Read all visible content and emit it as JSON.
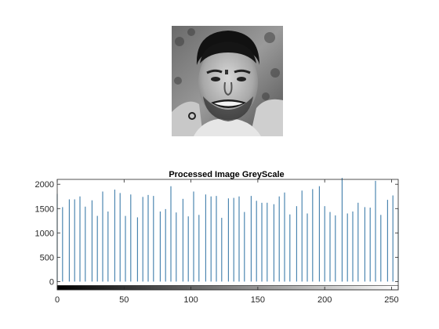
{
  "image_panel": {
    "icon": "portrait-photo-grayscale"
  },
  "chart_data": {
    "type": "bar",
    "title": "Processed Image GreyScale",
    "xlabel": "",
    "ylabel": "",
    "xlim": [
      0,
      255
    ],
    "ylim": [
      -170,
      2100
    ],
    "xticks": [
      0,
      50,
      100,
      150,
      200,
      250
    ],
    "yticks": [
      0,
      500,
      1000,
      1500,
      2000
    ],
    "bar_color": "#2a6fa1",
    "colorbar": {
      "range": [
        0,
        255
      ],
      "from": "#000000",
      "to": "#ffffff"
    },
    "x": [
      0,
      4,
      9,
      13,
      17,
      21,
      26,
      30,
      34,
      38,
      43,
      47,
      51,
      55,
      60,
      64,
      68,
      72,
      77,
      81,
      85,
      89,
      94,
      98,
      102,
      106,
      111,
      115,
      119,
      123,
      128,
      132,
      136,
      140,
      145,
      149,
      153,
      157,
      162,
      166,
      170,
      174,
      179,
      183,
      187,
      191,
      196,
      200,
      204,
      208,
      213,
      217,
      221,
      225,
      230,
      234,
      238,
      242,
      247,
      251,
      255
    ],
    "values": [
      1800,
      1530,
      1690,
      1690,
      1750,
      1540,
      1670,
      1350,
      1850,
      1440,
      1890,
      1820,
      1350,
      1790,
      1320,
      1740,
      1780,
      1760,
      1440,
      1490,
      1960,
      1420,
      1700,
      1340,
      1850,
      1370,
      1790,
      1750,
      1760,
      1310,
      1710,
      1720,
      1750,
      1430,
      1760,
      1660,
      1620,
      1620,
      1590,
      1750,
      1830,
      1380,
      1550,
      1870,
      1400,
      1900,
      1960,
      1550,
      1430,
      1360,
      2130,
      1400,
      1440,
      1620,
      1530,
      1520,
      2070,
      1370,
      1680,
      1770,
      1500
    ]
  }
}
